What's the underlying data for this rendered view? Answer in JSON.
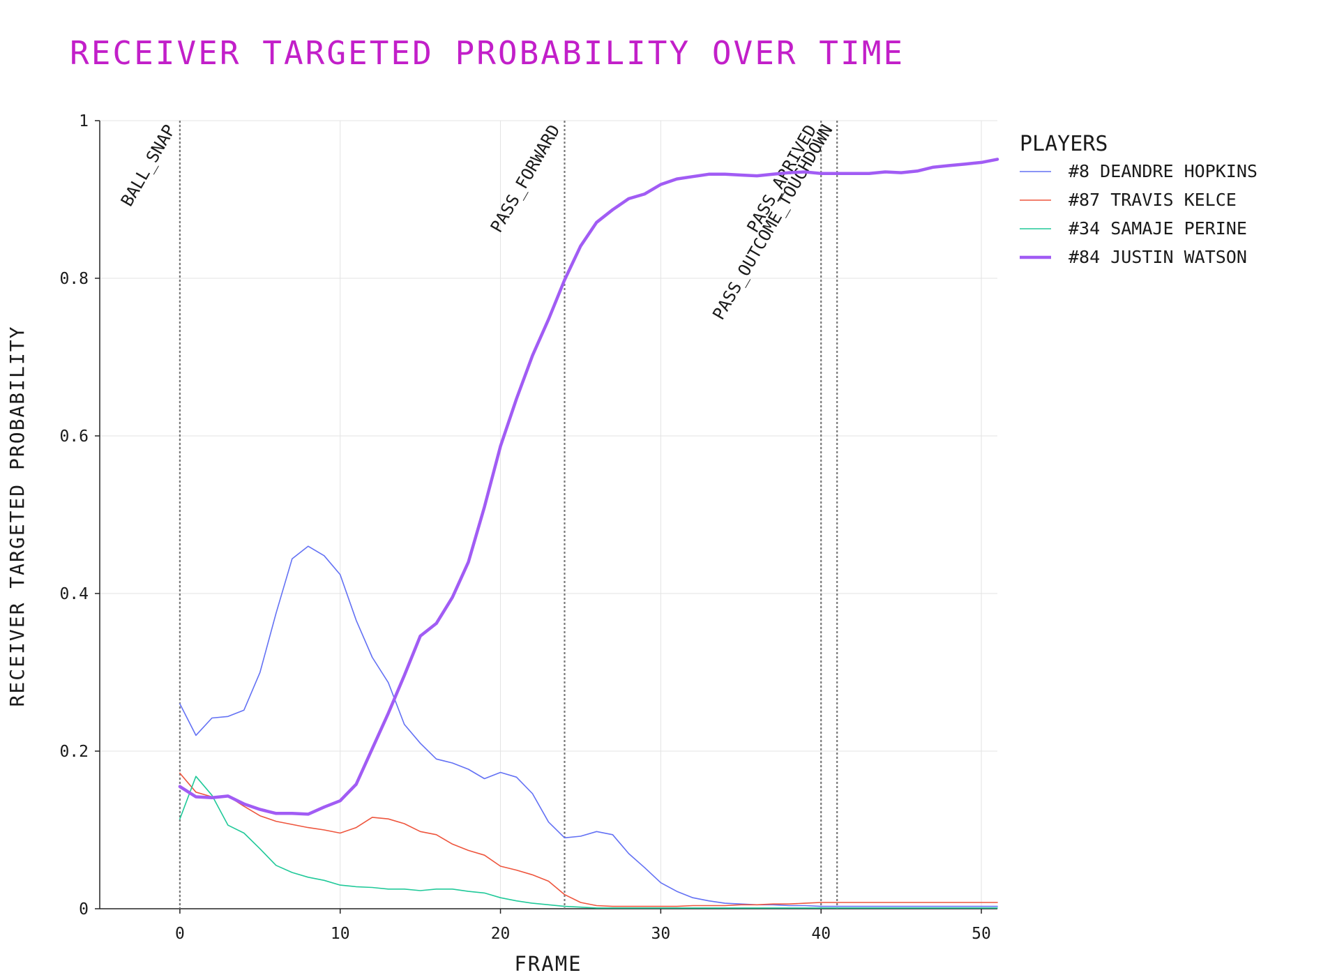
{
  "chart_data": {
    "type": "line",
    "title": "RECEIVER TARGETED PROBABILITY OVER TIME",
    "xlabel": "FRAME",
    "ylabel": "RECEIVER TARGETED PROBABILITY",
    "xlim": [
      -5,
      51
    ],
    "ylim": [
      0,
      1
    ],
    "x_ticks": [
      0,
      10,
      20,
      30,
      40,
      50
    ],
    "y_ticks": [
      0,
      0.2,
      0.4,
      0.6,
      0.8,
      1
    ],
    "y_tick_labels": [
      "0",
      "0.2",
      "0.4",
      "0.6",
      "0.8",
      "1"
    ],
    "grid": true,
    "legend": {
      "title": "PLAYERS",
      "position": "top-right"
    },
    "colors": {
      "title": "#c21fc9",
      "text": "#1a1a1a",
      "grid": "#e3e3e3",
      "event_line": "#777777"
    },
    "events": [
      {
        "x": 0,
        "label": "BALL_SNAP"
      },
      {
        "x": 24,
        "label": "PASS_FORWARD"
      },
      {
        "x": 40,
        "label": "PASS_ARRIVED"
      },
      {
        "x": 41,
        "label": "PASS_OUTCOME_TOUCHDOWN"
      }
    ],
    "series": [
      {
        "name": "#8 DEANDRE HOPKINS",
        "color": "#6371f4",
        "width": 1.6,
        "x_start": 0,
        "values": [
          0.26,
          0.22,
          0.242,
          0.244,
          0.252,
          0.3,
          0.375,
          0.444,
          0.46,
          0.448,
          0.424,
          0.366,
          0.319,
          0.287,
          0.234,
          0.21,
          0.19,
          0.185,
          0.177,
          0.165,
          0.173,
          0.167,
          0.146,
          0.11,
          0.09,
          0.092,
          0.098,
          0.094,
          0.07,
          0.052,
          0.033,
          0.022,
          0.014,
          0.01,
          0.007,
          0.006,
          0.005,
          0.005,
          0.004,
          0.004,
          0.003,
          0.003,
          0.003,
          0.003,
          0.003,
          0.003,
          0.003,
          0.003,
          0.003,
          0.003,
          0.003,
          0.003
        ]
      },
      {
        "name": "#87 TRAVIS KELCE",
        "color": "#ee553d",
        "width": 1.6,
        "x_start": 0,
        "values": [
          0.172,
          0.148,
          0.142,
          0.143,
          0.13,
          0.118,
          0.111,
          0.107,
          0.103,
          0.1,
          0.096,
          0.103,
          0.116,
          0.114,
          0.108,
          0.098,
          0.094,
          0.082,
          0.074,
          0.068,
          0.054,
          0.049,
          0.043,
          0.035,
          0.018,
          0.008,
          0.004,
          0.003,
          0.003,
          0.003,
          0.003,
          0.003,
          0.004,
          0.004,
          0.004,
          0.005,
          0.005,
          0.006,
          0.006,
          0.007,
          0.008,
          0.008,
          0.008,
          0.008,
          0.008,
          0.008,
          0.008,
          0.008,
          0.008,
          0.008,
          0.008,
          0.008
        ]
      },
      {
        "name": "#34 SAMAJE PERINE",
        "color": "#20c999",
        "width": 1.6,
        "x_start": 0,
        "values": [
          0.114,
          0.168,
          0.144,
          0.106,
          0.096,
          0.076,
          0.055,
          0.046,
          0.04,
          0.036,
          0.03,
          0.028,
          0.027,
          0.025,
          0.025,
          0.023,
          0.025,
          0.025,
          0.022,
          0.02,
          0.014,
          0.01,
          0.007,
          0.005,
          0.003,
          0.002,
          0.001,
          0.001,
          0.001,
          0.001,
          0.001,
          0.001,
          0.001,
          0.001,
          0.001,
          0.001,
          0.001,
          0.001,
          0.001,
          0.001,
          0.001,
          0.001,
          0.001,
          0.001,
          0.001,
          0.001,
          0.001,
          0.001,
          0.001,
          0.001,
          0.001,
          0.001
        ]
      },
      {
        "name": "#84 JUSTIN WATSON",
        "color": "#a15cf4",
        "width": 4.5,
        "x_start": 0,
        "values": [
          0.155,
          0.142,
          0.141,
          0.143,
          0.133,
          0.126,
          0.121,
          0.121,
          0.12,
          0.129,
          0.137,
          0.158,
          0.203,
          0.248,
          0.296,
          0.346,
          0.362,
          0.395,
          0.44,
          0.51,
          0.587,
          0.647,
          0.702,
          0.748,
          0.798,
          0.841,
          0.871,
          0.887,
          0.901,
          0.907,
          0.919,
          0.926,
          0.929,
          0.932,
          0.932,
          0.931,
          0.93,
          0.932,
          0.934,
          0.935,
          0.933,
          0.933,
          0.933,
          0.933,
          0.935,
          0.934,
          0.936,
          0.941,
          0.943,
          0.945,
          0.947,
          0.951
        ]
      }
    ]
  }
}
